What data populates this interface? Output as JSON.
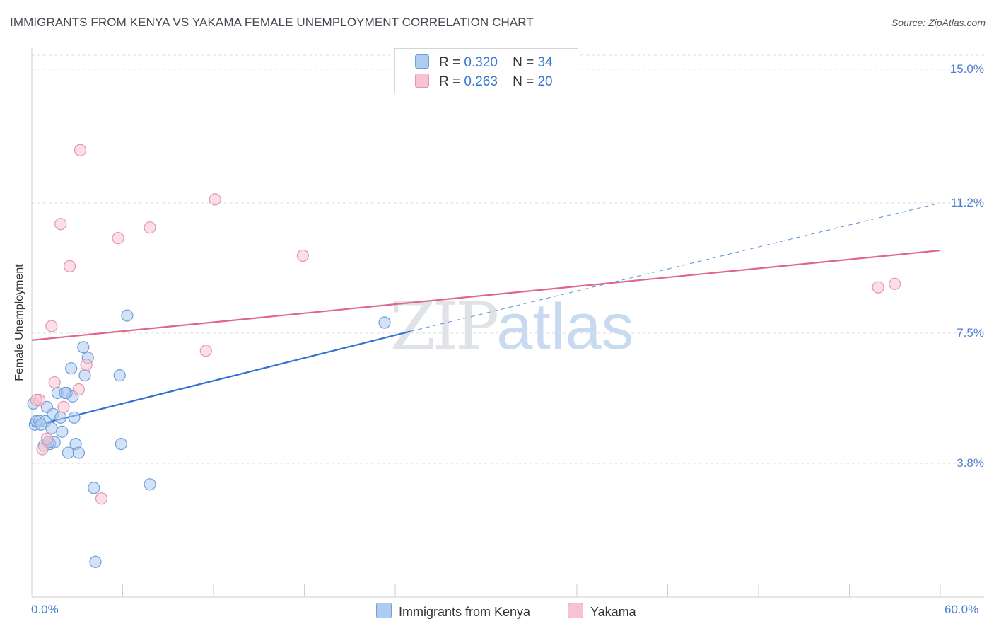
{
  "chart_data": {
    "type": "scatter",
    "title": "IMMIGRANTS FROM KENYA VS YAKAMA FEMALE UNEMPLOYMENT CORRELATION CHART",
    "source": "Source: ZipAtlas.com",
    "xlabel": "",
    "ylabel": "Female Unemployment",
    "xlim": [
      0,
      60
    ],
    "ylim": [
      0,
      15.6
    ],
    "x_tick_labels": [
      "0.0%",
      "60.0%"
    ],
    "y_ticks": [
      {
        "value": 3.8,
        "label": "3.8%"
      },
      {
        "value": 7.5,
        "label": "7.5%"
      },
      {
        "value": 11.2,
        "label": "11.2%"
      },
      {
        "value": 15.0,
        "label": "15.0%"
      }
    ],
    "grid": true,
    "legend": {
      "position": "top-center",
      "entries": [
        {
          "r_label": "R =",
          "r_value": "0.320",
          "n_label": "N =",
          "n_value": "34"
        },
        {
          "r_label": "R =",
          "r_value": "0.263",
          "n_label": "N =",
          "n_value": "20"
        }
      ]
    },
    "bottom_legend": [
      "Immigrants from Kenya",
      "Yakama"
    ],
    "watermark": {
      "zip": "ZIP",
      "atlas": "atlas"
    },
    "colors": {
      "kenya_fill": "#aecbf0",
      "kenya_stroke": "#6e9fdd",
      "kenya_line": "#2f73d0",
      "yakama_fill": "#f7c2d2",
      "yakama_stroke": "#e693ad",
      "yakama_line": "#e0658e",
      "tick_text": "#4a7fd0"
    },
    "series": [
      {
        "name": "Immigrants from Kenya",
        "points": [
          {
            "x": 0.1,
            "y": 5.5
          },
          {
            "x": 0.2,
            "y": 4.9
          },
          {
            "x": 0.3,
            "y": 5.0
          },
          {
            "x": 0.5,
            "y": 5.0
          },
          {
            "x": 0.8,
            "y": 4.3
          },
          {
            "x": 0.9,
            "y": 5.0
          },
          {
            "x": 1.0,
            "y": 5.4
          },
          {
            "x": 1.2,
            "y": 4.35
          },
          {
            "x": 1.3,
            "y": 4.8
          },
          {
            "x": 1.4,
            "y": 5.2
          },
          {
            "x": 1.5,
            "y": 4.4
          },
          {
            "x": 1.7,
            "y": 5.8
          },
          {
            "x": 1.9,
            "y": 5.1
          },
          {
            "x": 2.0,
            "y": 4.7
          },
          {
            "x": 2.3,
            "y": 5.8
          },
          {
            "x": 2.4,
            "y": 4.1
          },
          {
            "x": 2.6,
            "y": 6.5
          },
          {
            "x": 2.7,
            "y": 5.7
          },
          {
            "x": 2.8,
            "y": 5.1
          },
          {
            "x": 2.9,
            "y": 4.35
          },
          {
            "x": 3.1,
            "y": 4.1
          },
          {
            "x": 3.4,
            "y": 7.1
          },
          {
            "x": 3.5,
            "y": 6.3
          },
          {
            "x": 3.7,
            "y": 6.8
          },
          {
            "x": 4.1,
            "y": 3.1
          },
          {
            "x": 4.2,
            "y": 1.0
          },
          {
            "x": 5.8,
            "y": 6.3
          },
          {
            "x": 5.9,
            "y": 4.35
          },
          {
            "x": 6.3,
            "y": 8.0
          },
          {
            "x": 7.8,
            "y": 3.2
          },
          {
            "x": 23.3,
            "y": 7.8
          },
          {
            "x": 2.2,
            "y": 5.8
          },
          {
            "x": 0.6,
            "y": 4.9
          },
          {
            "x": 1.1,
            "y": 4.4
          }
        ]
      },
      {
        "name": "Yakama",
        "points": [
          {
            "x": 0.5,
            "y": 5.6
          },
          {
            "x": 0.7,
            "y": 4.2
          },
          {
            "x": 1.0,
            "y": 4.5
          },
          {
            "x": 1.3,
            "y": 7.7
          },
          {
            "x": 1.5,
            "y": 6.1
          },
          {
            "x": 1.9,
            "y": 10.6
          },
          {
            "x": 2.1,
            "y": 5.4
          },
          {
            "x": 2.5,
            "y": 9.4
          },
          {
            "x": 3.1,
            "y": 5.9
          },
          {
            "x": 3.2,
            "y": 12.7
          },
          {
            "x": 3.6,
            "y": 6.6
          },
          {
            "x": 4.6,
            "y": 2.8
          },
          {
            "x": 5.7,
            "y": 10.2
          },
          {
            "x": 7.8,
            "y": 10.5
          },
          {
            "x": 11.5,
            "y": 7.0
          },
          {
            "x": 12.1,
            "y": 11.3
          },
          {
            "x": 17.9,
            "y": 9.7
          },
          {
            "x": 55.9,
            "y": 8.8
          },
          {
            "x": 57.0,
            "y": 8.9
          },
          {
            "x": 0.3,
            "y": 5.6
          }
        ]
      }
    ],
    "trend_lines": [
      {
        "name": "Immigrants from Kenya",
        "x0": 0,
        "y0": 4.85,
        "x1": 25,
        "y1": 7.55,
        "dashed_to_x": 60,
        "dashed_to_y": 11.2
      },
      {
        "name": "Yakama",
        "x0": 0,
        "y0": 7.3,
        "x1": 60,
        "y1": 9.85
      }
    ]
  }
}
